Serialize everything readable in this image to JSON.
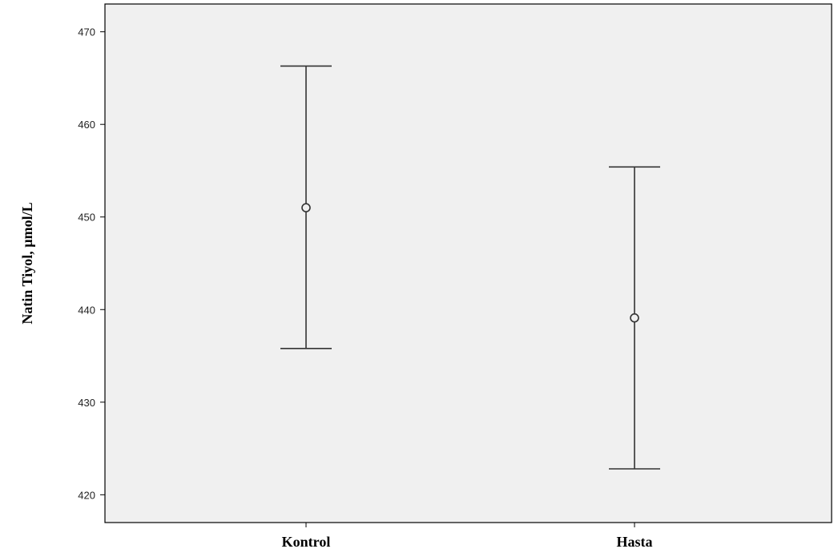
{
  "chart_data": {
    "type": "errorbar",
    "categories": [
      "Kontrol",
      "Hasta"
    ],
    "series": [
      {
        "means": [
          451.0,
          439.1
        ],
        "lower": [
          435.8,
          422.8
        ],
        "upper": [
          466.3,
          455.4
        ]
      }
    ],
    "title": "",
    "xlabel": "",
    "ylabel": "Natin Tiyol, µmol/L",
    "ylim": [
      417,
      473
    ],
    "yticks": [
      420,
      430,
      440,
      450,
      460,
      470
    ],
    "grid": false,
    "colors": {
      "plot_background": "#f0f0f0",
      "lines": "#333333"
    }
  }
}
